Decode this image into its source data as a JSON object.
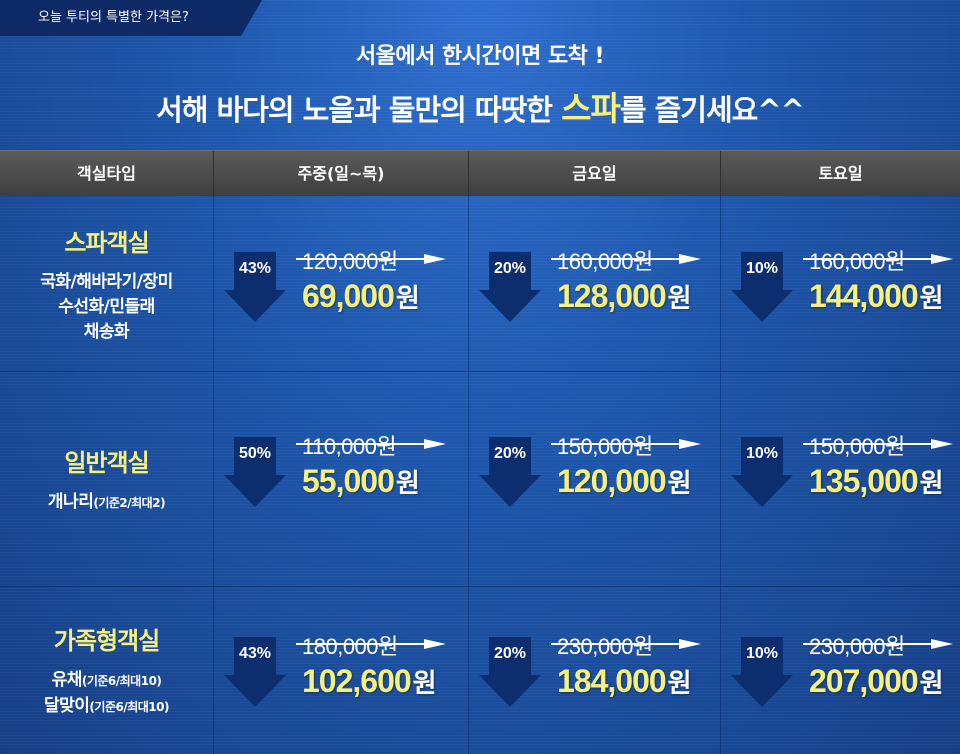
{
  "tag": "오늘 투티의 특별한 가격은?",
  "headline": {
    "line1": "서울에서 한시간이면 도착 !",
    "line2_pre": "서해 바다의 노을과  둘만의 따땃한 ",
    "line2_hl": "스파",
    "line2_post": "를 즐기세요^^"
  },
  "columns": [
    "객실타입",
    "주중(일~목)",
    "금요일",
    "토요일"
  ],
  "currency": "원",
  "rows": [
    {
      "name": "스파객실",
      "rooms": [
        "국화/해바라기/장미",
        "수선화/민들래",
        "채송화"
      ],
      "prices": [
        {
          "discount": "43%",
          "original": "120,000원",
          "sale": "69,000"
        },
        {
          "discount": "20%",
          "original": "160,000원",
          "sale": "128,000"
        },
        {
          "discount": "10%",
          "original": "160,000원",
          "sale": "144,000"
        }
      ]
    },
    {
      "name": "일반객실",
      "room_main": "개나리",
      "room_sub": "(기준2/최대2)",
      "prices": [
        {
          "discount": "50%",
          "original": "110,000원",
          "sale": "55,000"
        },
        {
          "discount": "20%",
          "original": "150,000원",
          "sale": "120,000"
        },
        {
          "discount": "10%",
          "original": "150,000원",
          "sale": "135,000"
        }
      ]
    },
    {
      "name": "가족형객실",
      "rooms": [
        {
          "main": "유채",
          "sub": "(기준6/최대10)"
        },
        {
          "main": "달맞이",
          "sub": "(기준6/최대10)"
        }
      ],
      "prices": [
        {
          "discount": "43%",
          "original": "180,000원",
          "sale": "102,600"
        },
        {
          "discount": "20%",
          "original": "230,000원",
          "sale": "184,000"
        },
        {
          "discount": "10%",
          "original": "230,000원",
          "sale": "207,000"
        }
      ]
    }
  ],
  "colors": {
    "accent": "#f6f07c",
    "arrow": "#0c2e6e",
    "header": "#4a4a4a"
  }
}
